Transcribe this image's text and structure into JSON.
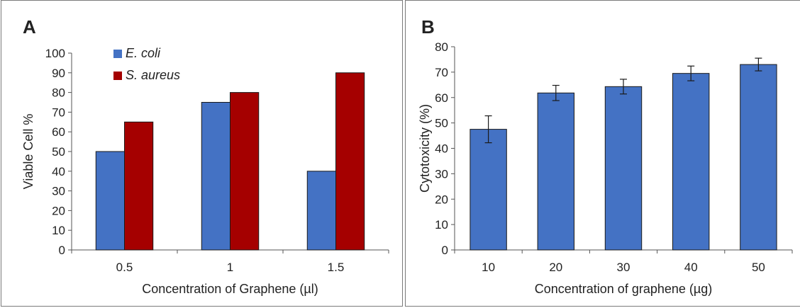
{
  "chart_data": [
    {
      "panel": "A",
      "type": "bar",
      "categories": [
        "0.5",
        "1",
        "1.5"
      ],
      "series": [
        {
          "name": "E. coli",
          "color": "#4472c4",
          "values": [
            50,
            75,
            40
          ]
        },
        {
          "name": "S. aureus",
          "color": "#a50000",
          "values": [
            65,
            80,
            90
          ]
        }
      ],
      "xlabel": "Concentration of Graphene (µl)",
      "ylabel": "Viable Cell %",
      "ylim": [
        0,
        100
      ],
      "yticks": [
        "0",
        "10",
        "20",
        "30",
        "40",
        "50",
        "60",
        "70",
        "80",
        "90",
        "100"
      ],
      "grid": false,
      "legend": "top-left"
    },
    {
      "panel": "B",
      "type": "bar",
      "categories": [
        "10",
        "20",
        "30",
        "40",
        "50"
      ],
      "series": [
        {
          "color": "#4472c4",
          "values": [
            47.5,
            61.8,
            64.3,
            69.5,
            73
          ],
          "errors": [
            5.3,
            3.0,
            2.9,
            2.9,
            2.5
          ]
        }
      ],
      "xlabel": "Concentration of graphene (µg)",
      "ylabel": "Cytotoxicity (%)",
      "ylim": [
        0,
        80
      ],
      "yticks": [
        "0",
        "10",
        "20",
        "30",
        "40",
        "50",
        "60",
        "70",
        "80"
      ],
      "grid": false,
      "legend": "none"
    }
  ]
}
